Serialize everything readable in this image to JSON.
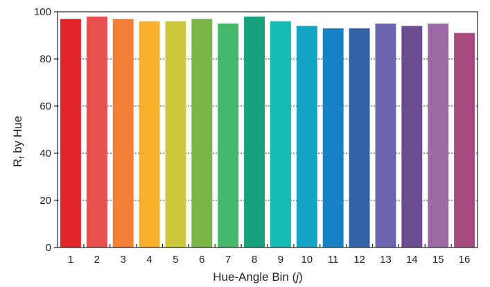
{
  "chart_data": {
    "type": "bar",
    "title": "",
    "xlabel": {
      "prefix": "Hue-Angle Bin (",
      "variable": "j",
      "suffix": ")"
    },
    "ylabel": {
      "base": "R",
      "subscript": "f",
      "rest": " by Hue"
    },
    "categories": [
      "1",
      "2",
      "3",
      "4",
      "5",
      "6",
      "7",
      "8",
      "9",
      "10",
      "11",
      "12",
      "13",
      "14",
      "15",
      "16"
    ],
    "values": [
      97,
      98,
      97,
      96,
      96,
      97,
      95,
      98,
      96,
      94,
      93,
      93,
      95,
      94,
      95,
      91
    ],
    "colors": [
      "#e4262b",
      "#e8504f",
      "#f47e36",
      "#fbb02d",
      "#cdc93f",
      "#7ab648",
      "#45b86c",
      "#16a07b",
      "#14bcb3",
      "#13a3c5",
      "#1681c4",
      "#3462a8",
      "#6b66ae",
      "#6b4c8e",
      "#9c6ba5",
      "#a64b7e"
    ],
    "ylim": [
      0,
      100
    ],
    "yticks": [
      0,
      20,
      40,
      60,
      80,
      100
    ],
    "grid": "horizontal-dashed",
    "legend": "none"
  }
}
